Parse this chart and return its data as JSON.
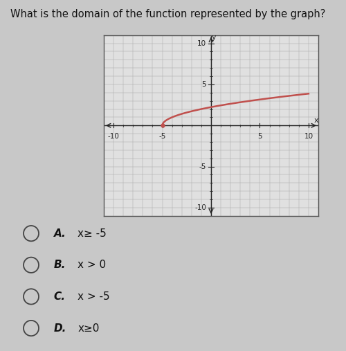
{
  "title": "What is the domain of the function represented by the graph?",
  "title_fontsize": 10.5,
  "background_color": "#c8c8c8",
  "graph_bg_color": "#e0e0e0",
  "graph_border_color": "#555555",
  "xlim": [
    -11,
    11
  ],
  "ylim": [
    -11,
    11
  ],
  "xticks": [
    -10,
    -5,
    5,
    10
  ],
  "yticks": [
    -10,
    -5,
    5,
    10
  ],
  "curve_color": "#c0504d",
  "curve_lw": 1.8,
  "start_x": -5,
  "options": [
    {
      "label": "A.",
      "math": "x≥ -5"
    },
    {
      "label": "B.",
      "math": "x > 0"
    },
    {
      "label": "C.",
      "math": "x > -5"
    },
    {
      "label": "D.",
      "math": "x≥0"
    }
  ],
  "grid_color": "#aaaaaa",
  "axis_color": "#222222",
  "tick_fontsize": 7.5,
  "options_fontsize": 11,
  "label_fontsize": 8
}
